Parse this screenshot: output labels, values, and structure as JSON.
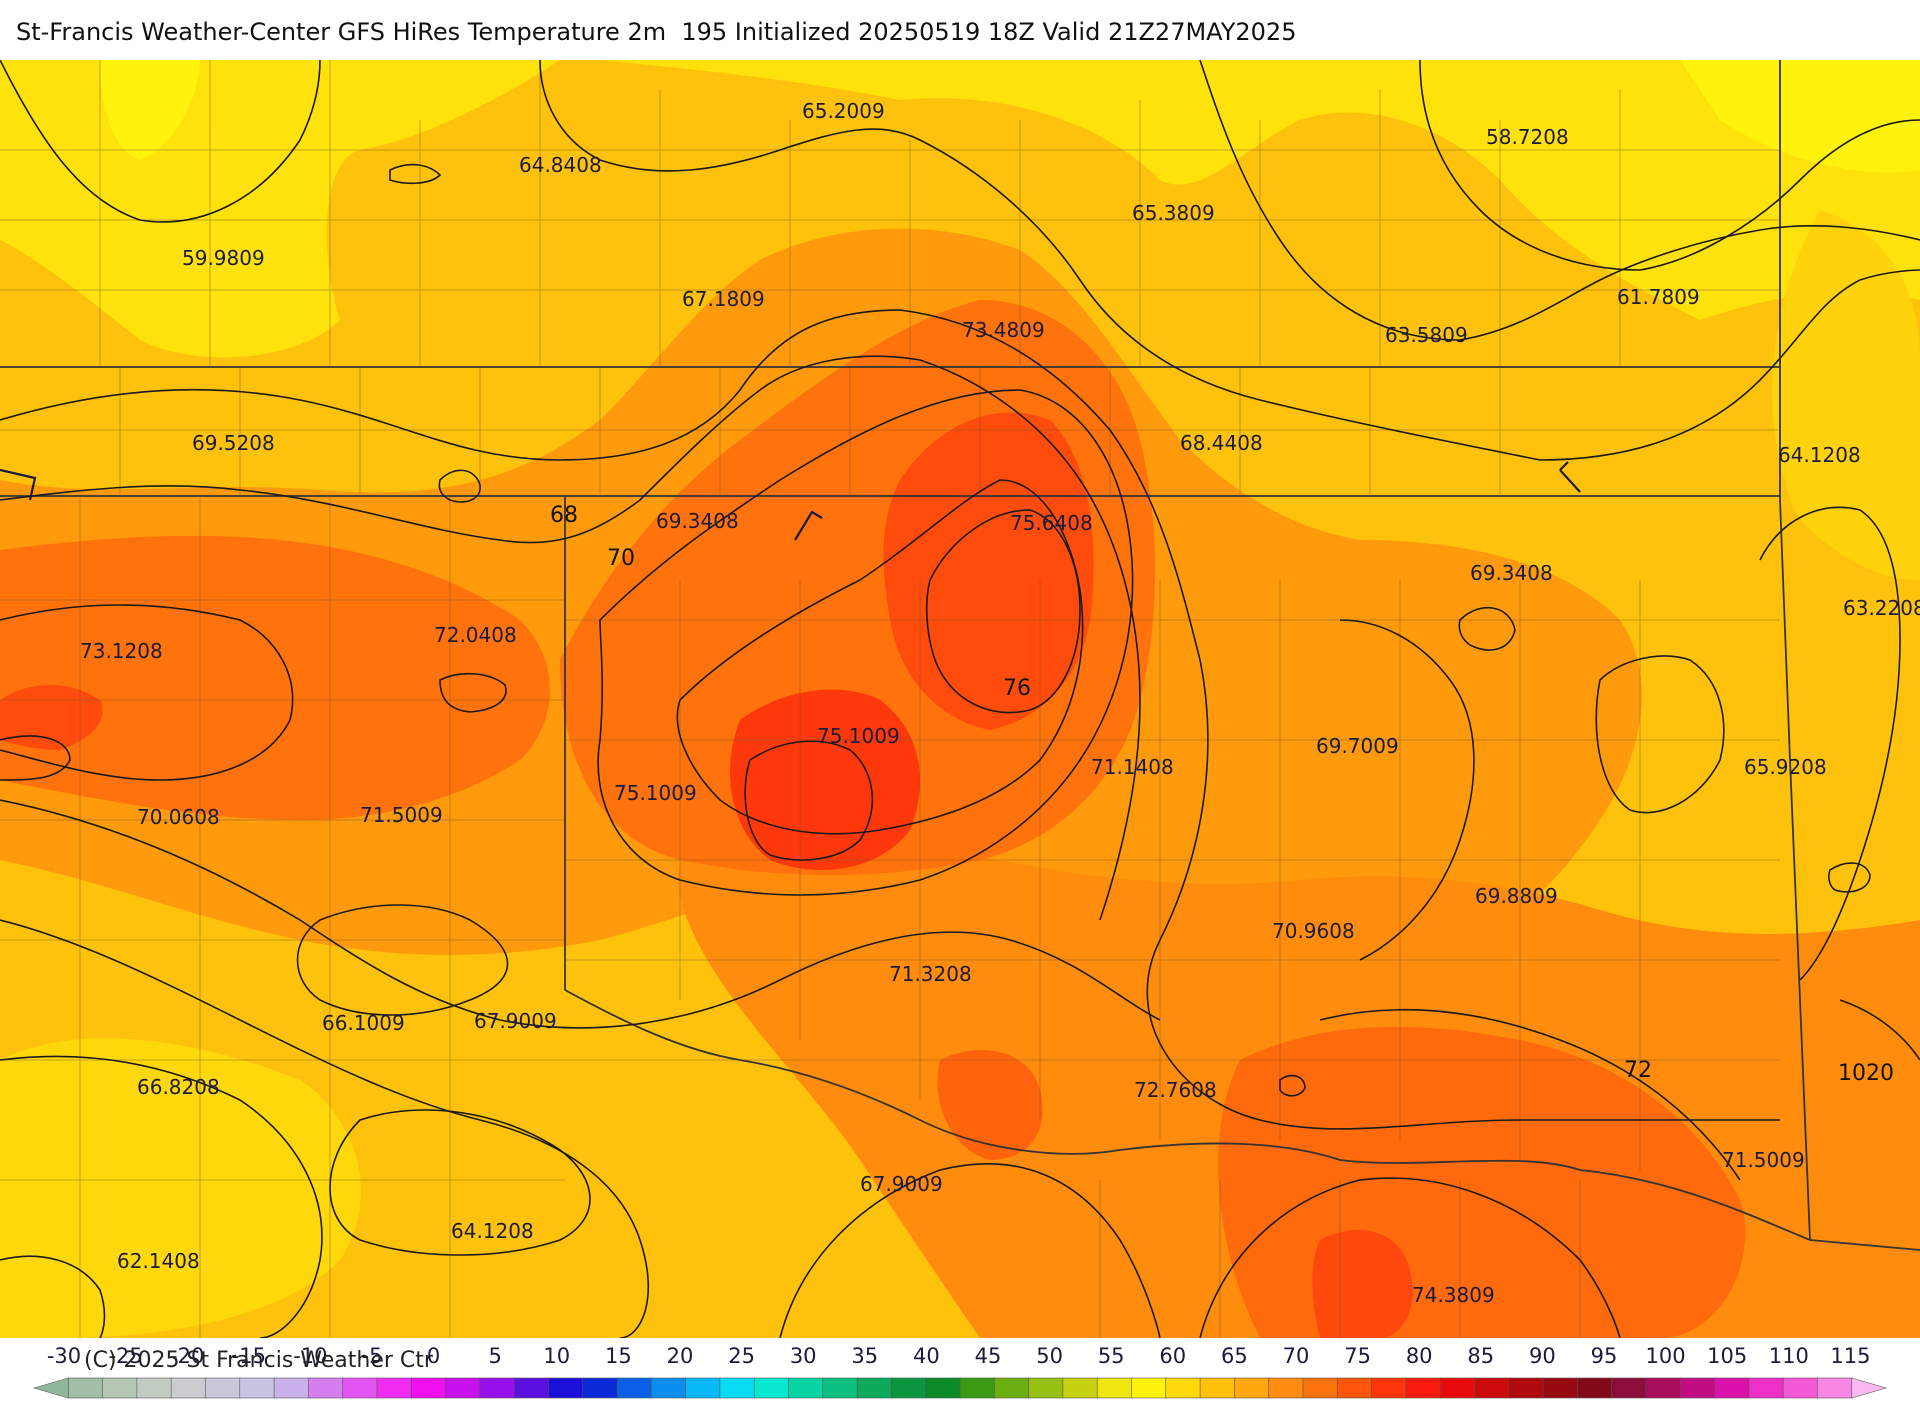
{
  "title": "St-Francis Weather-Center GFS HiRes Temperature 2m  195 Initialized 20250519 18Z Valid 21Z27MAY2025",
  "copyright": "(C) 2025 St Francis Weather Ctr",
  "temperature_labels": [
    {
      "text": "65.2009",
      "x": 65.2009
    },
    {
      "text": "58.7208",
      "x": 58.7208
    },
    {
      "text": "64.8408",
      "x": 64.8408
    },
    {
      "text": "65.3809",
      "x": 65.3809
    },
    {
      "text": "59.9809",
      "x": 59.9809
    },
    {
      "text": "67.1809",
      "x": 67.1809
    },
    {
      "text": "73.4809",
      "x": 73.4809
    },
    {
      "text": "63.5809",
      "x": 63.5809
    },
    {
      "text": "61.7809",
      "x": 61.7809
    },
    {
      "text": "69.5208",
      "x": 69.5208
    },
    {
      "text": "68.4408",
      "x": 68.4408
    },
    {
      "text": "64.1208",
      "x": 64.1208
    },
    {
      "text": "69.3408",
      "x": 69.3408
    },
    {
      "text": "75.6408",
      "x": 75.6408
    },
    {
      "text": "69.3408",
      "x": 69.3408
    },
    {
      "text": "63.2208",
      "x": 63.2208
    },
    {
      "text": "73.1208",
      "x": 73.1208
    },
    {
      "text": "72.0408",
      "x": 72.0408
    },
    {
      "text": "75.1009",
      "x": 75.1009
    },
    {
      "text": "71.1408",
      "x": 71.1408
    },
    {
      "text": "69.7009",
      "x": 69.7009
    },
    {
      "text": "65.9208",
      "x": 65.9208
    },
    {
      "text": "75.1009",
      "x": 75.1009
    },
    {
      "text": "70.0608",
      "x": 70.0608
    },
    {
      "text": "71.5009",
      "x": 71.5009
    },
    {
      "text": "69.8809",
      "x": 69.8809
    },
    {
      "text": "70.9608",
      "x": 70.9608
    },
    {
      "text": "71.3208",
      "x": 71.3208
    },
    {
      "text": "66.1009",
      "x": 66.1009
    },
    {
      "text": "67.9009",
      "x": 67.9009
    },
    {
      "text": "66.8208",
      "x": 66.8208
    },
    {
      "text": "72.7608",
      "x": 72.7608
    },
    {
      "text": "71.5009",
      "x": 71.5009
    },
    {
      "text": "67.9009",
      "x": 67.9009
    },
    {
      "text": "64.1208",
      "x": 64.1208
    },
    {
      "text": "62.1408",
      "x": 62.1408
    },
    {
      "text": "74.3809",
      "x": 74.3809
    }
  ],
  "contour_labels": [
    "68",
    "70",
    "76",
    "72",
    "1020"
  ],
  "colorbar": {
    "ticks": [
      "-30",
      "-25",
      "-20",
      "-15",
      "-10",
      "-5",
      "0",
      "5",
      "10",
      "15",
      "20",
      "25",
      "30",
      "35",
      "40",
      "45",
      "50",
      "55",
      "60",
      "65",
      "70",
      "75",
      "80",
      "85",
      "90",
      "95",
      "100",
      "105",
      "110",
      "115"
    ],
    "colors": [
      "#8fb89a",
      "#a3bfa8",
      "#b5c6b4",
      "#c2cbc2",
      "#c9cdd0",
      "#c8c9d8",
      "#c6c4e0",
      "#c8b0ea",
      "#d47ef0",
      "#e255f2",
      "#ef2cf0",
      "#f20ff2",
      "#c80ff0",
      "#9610ec",
      "#5b10e0",
      "#1a10d8",
      "#0b2ad8",
      "#0b5ee6",
      "#0b8cf0",
      "#08b8f4",
      "#08dcf2",
      "#08e8d0",
      "#08d4a4",
      "#0cc080",
      "#0caa5a",
      "#0c9640",
      "#0c8a28",
      "#3a9a14",
      "#6aae10",
      "#98c010",
      "#c6d210",
      "#eee60c",
      "#fff20c",
      "#ffd80c",
      "#ffc00c",
      "#ffa60c",
      "#ff8c0c",
      "#ff720c",
      "#ff560c",
      "#ff360c",
      "#f81a0c",
      "#e80a0c",
      "#cc0a0c",
      "#b0080c",
      "#960a10",
      "#820a18",
      "#8c0c3a",
      "#a60c5a",
      "#c20c84",
      "#dc10aa",
      "#ec30c8",
      "#f45ad8",
      "#f888e4",
      "#fab8f0"
    ]
  }
}
